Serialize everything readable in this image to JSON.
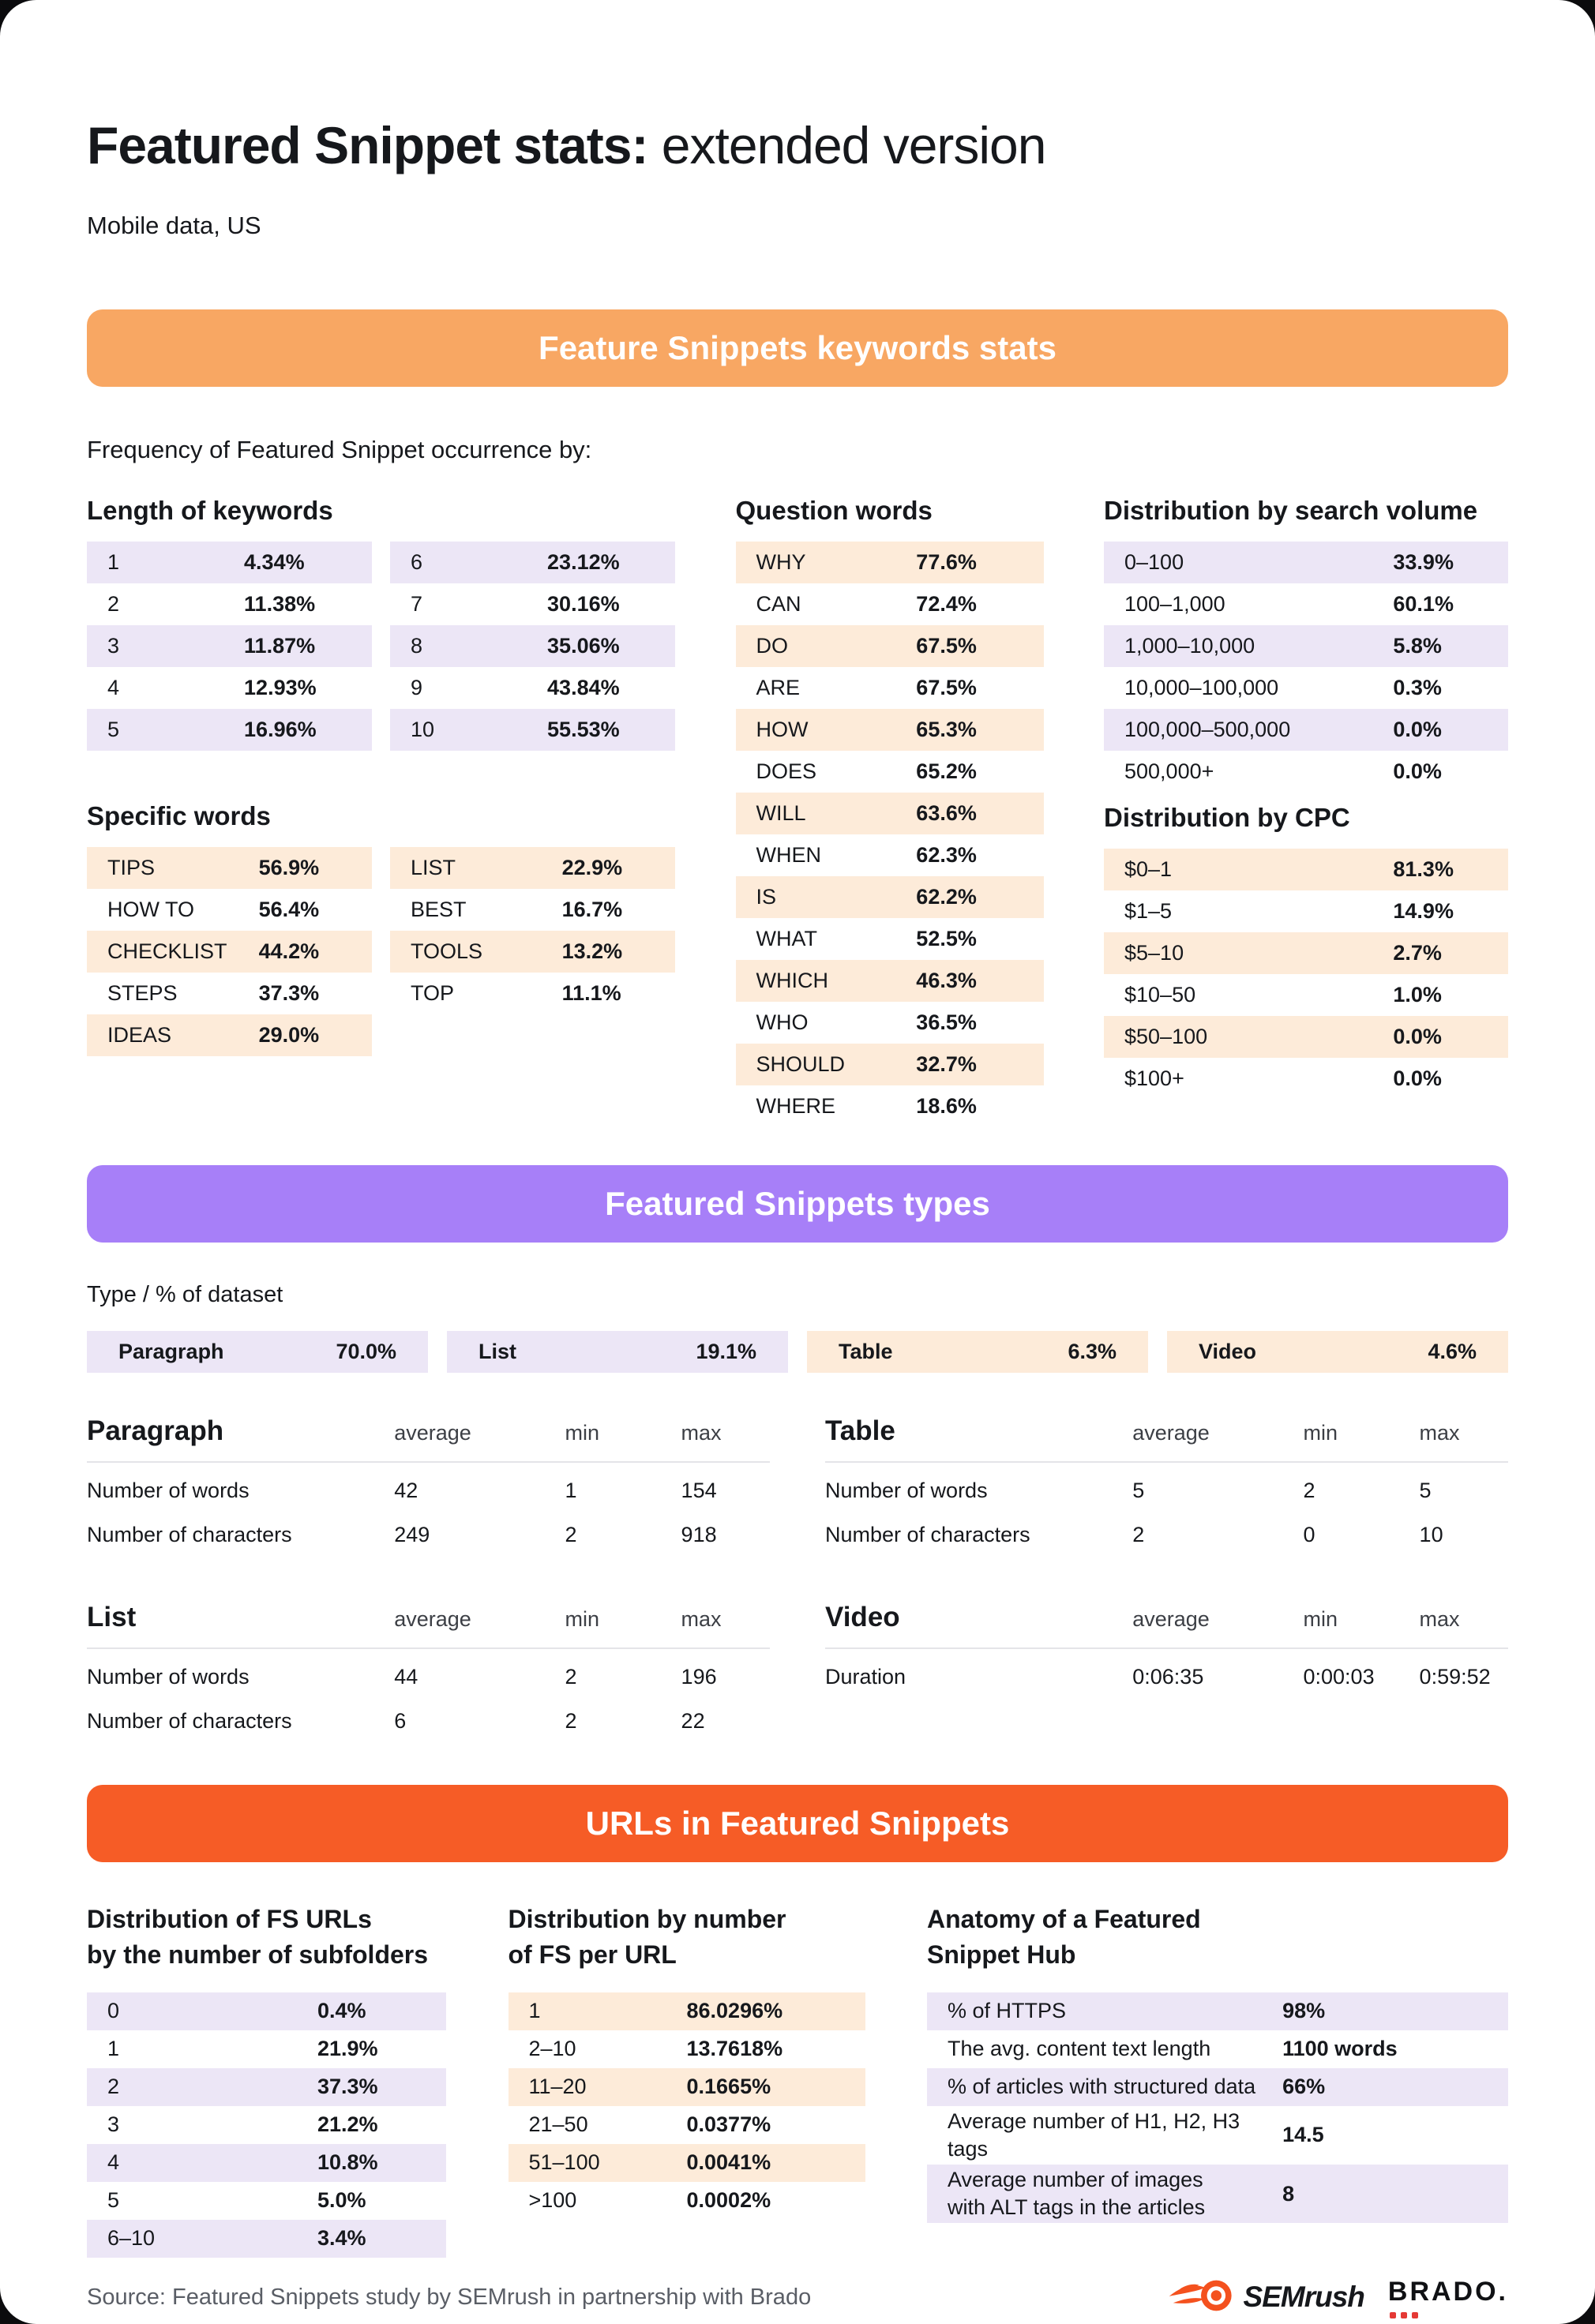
{
  "colors": {
    "banner_keywords": "#F8A763",
    "banner_types": "#A77FF8",
    "banner_urls": "#F65C26",
    "lavender": "#ECE6F6",
    "peach": "#FDEBD9",
    "semrush_orange": "#F4511E",
    "brado_dot": "#E53935"
  },
  "header": {
    "title_bold": "Featured Snippet stats:",
    "title_rest": " extended version",
    "subtitle": "Mobile data, US"
  },
  "keywords": {
    "banner": "Feature Snippets keywords stats",
    "intro": "Frequency of Featured Snippet occurrence by:",
    "length": {
      "heading": "Length of keywords",
      "col1": [
        [
          "1",
          "4.34%"
        ],
        [
          "2",
          "11.38%"
        ],
        [
          "3",
          "11.87%"
        ],
        [
          "4",
          "12.93%"
        ],
        [
          "5",
          "16.96%"
        ]
      ],
      "col2": [
        [
          "6",
          "23.12%"
        ],
        [
          "7",
          "30.16%"
        ],
        [
          "8",
          "35.06%"
        ],
        [
          "9",
          "43.84%"
        ],
        [
          "10",
          "55.53%"
        ]
      ]
    },
    "specific": {
      "heading": "Specific words",
      "col1": [
        [
          "TIPS",
          "56.9%"
        ],
        [
          "HOW TO",
          "56.4%"
        ],
        [
          "CHECKLIST",
          "44.2%"
        ],
        [
          "STEPS",
          "37.3%"
        ],
        [
          "IDEAS",
          "29.0%"
        ]
      ],
      "col2": [
        [
          "LIST",
          "22.9%"
        ],
        [
          "BEST",
          "16.7%"
        ],
        [
          "TOOLS",
          "13.2%"
        ],
        [
          "TOP",
          "11.1%"
        ]
      ]
    },
    "question": {
      "heading": "Question words",
      "rows": [
        [
          "WHY",
          "77.6%"
        ],
        [
          "CAN",
          "72.4%"
        ],
        [
          "DO",
          "67.5%"
        ],
        [
          "ARE",
          "67.5%"
        ],
        [
          "HOW",
          "65.3%"
        ],
        [
          "DOES",
          "65.2%"
        ],
        [
          "WILL",
          "63.6%"
        ],
        [
          "WHEN",
          "62.3%"
        ],
        [
          "IS",
          "62.2%"
        ],
        [
          "WHAT",
          "52.5%"
        ],
        [
          "WHICH",
          "46.3%"
        ],
        [
          "WHO",
          "36.5%"
        ],
        [
          "SHOULD",
          "32.7%"
        ],
        [
          "WHERE",
          "18.6%"
        ]
      ]
    },
    "volume": {
      "heading": "Distribution by search volume",
      "rows": [
        [
          "0–100",
          "33.9%"
        ],
        [
          "100–1,000",
          "60.1%"
        ],
        [
          "1,000–10,000",
          "5.8%"
        ],
        [
          "10,000–100,000",
          "0.3%"
        ],
        [
          "100,000–500,000",
          "0.0%"
        ],
        [
          "500,000+",
          "0.0%"
        ]
      ]
    },
    "cpc": {
      "heading": "Distribution by CPC",
      "rows": [
        [
          "$0–1",
          "81.3%"
        ],
        [
          "$1–5",
          "14.9%"
        ],
        [
          "$5–10",
          "2.7%"
        ],
        [
          "$10–50",
          "1.0%"
        ],
        [
          "$50–100",
          "0.0%"
        ],
        [
          "$100+",
          "0.0%"
        ]
      ]
    }
  },
  "types": {
    "banner": "Featured Snippets types",
    "label": "Type / % of dataset",
    "chips": [
      {
        "label": "Paragraph",
        "value": "70.0%",
        "tone": "purple"
      },
      {
        "label": "List",
        "value": "19.1%",
        "tone": "purple"
      },
      {
        "label": "Table",
        "value": "6.3%",
        "tone": "peach"
      },
      {
        "label": "Video",
        "value": "4.6%",
        "tone": "peach"
      }
    ],
    "tables": [
      {
        "heading": "Paragraph",
        "cols": [
          "average",
          "min",
          "max"
        ],
        "rows": [
          [
            "Number of words",
            "42",
            "1",
            "154"
          ],
          [
            "Number of characters",
            "249",
            "2",
            "918"
          ]
        ]
      },
      {
        "heading": "Table",
        "cols": [
          "average",
          "min",
          "max"
        ],
        "rows": [
          [
            "Number of words",
            "5",
            "2",
            "5"
          ],
          [
            "Number of characters",
            "2",
            "0",
            "10"
          ]
        ]
      },
      {
        "heading": "List",
        "cols": [
          "average",
          "min",
          "max"
        ],
        "rows": [
          [
            "Number of words",
            "44",
            "2",
            "196"
          ],
          [
            "Number of characters",
            "6",
            "2",
            "22"
          ]
        ]
      },
      {
        "heading": "Video",
        "cols": [
          "average",
          "min",
          "max"
        ],
        "rows": [
          [
            "Duration",
            "0:06:35",
            "0:00:03",
            "0:59:52"
          ]
        ]
      }
    ]
  },
  "urls": {
    "banner": "URLs in Featured Snippets",
    "columns": [
      {
        "heading": "Distribution of FS URLs\nby the number of subfolders",
        "tone": "purple",
        "rows": [
          [
            "0",
            "0.4%"
          ],
          [
            "1",
            "21.9%"
          ],
          [
            "2",
            "37.3%"
          ],
          [
            "3",
            "21.2%"
          ],
          [
            "4",
            "10.8%"
          ],
          [
            "5",
            "5.0%"
          ],
          [
            "6–10",
            "3.4%"
          ]
        ]
      },
      {
        "heading": "Distribution by number\nof FS per URL",
        "tone": "peach",
        "rows": [
          [
            "1",
            "86.0296%"
          ],
          [
            "2–10",
            "13.7618%"
          ],
          [
            "11–20",
            "0.1665%"
          ],
          [
            "21–50",
            "0.0377%"
          ],
          [
            "51–100",
            "0.0041%"
          ],
          [
            ">100",
            "0.0002%"
          ]
        ]
      },
      {
        "heading": "Anatomy of a Featured\nSnippet Hub",
        "tone": "purple",
        "rows": [
          [
            "% of HTTPS",
            "98%"
          ],
          [
            "The avg. content text length",
            "1100 words"
          ],
          [
            "% of articles with structured data",
            "66%"
          ],
          [
            "Average number of H1, H2, H3 tags",
            "14.5"
          ],
          [
            "Average number of images\nwith ALT tags in the articles",
            "8"
          ]
        ]
      }
    ]
  },
  "footer": {
    "source": "Source: Featured Snippets study by SEMrush in partnership with Brado",
    "semrush_label": "SEMrush",
    "brado_label": "BRADO."
  }
}
